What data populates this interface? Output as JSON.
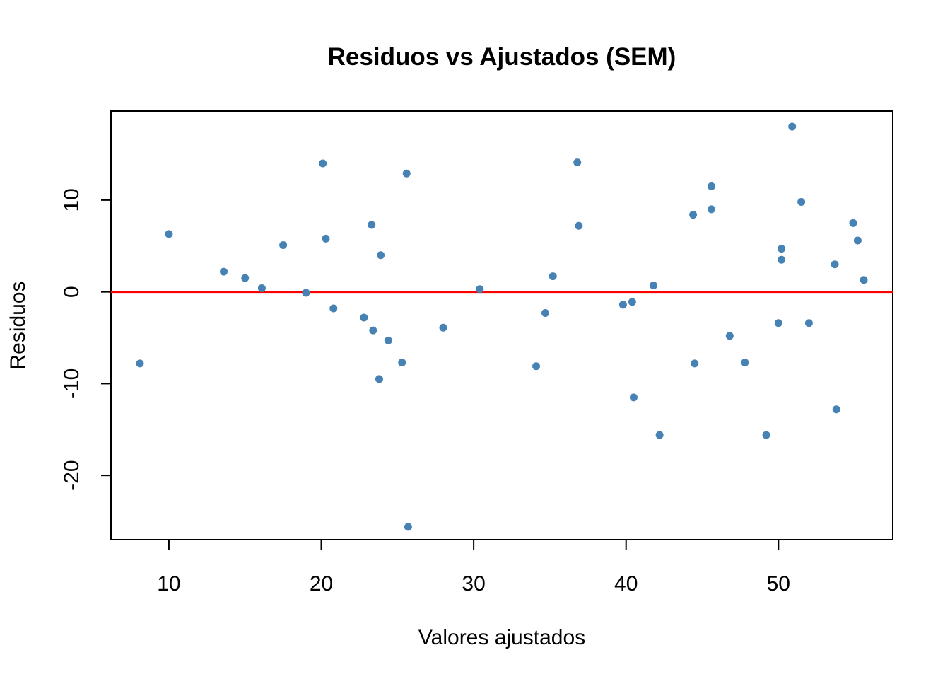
{
  "chart_data": {
    "type": "scatter",
    "title": "Residuos vs Ajustados (SEM)",
    "xlabel": "Valores ajustados",
    "ylabel": "Residuos",
    "xlim": [
      6.2,
      57.5
    ],
    "ylim": [
      -27,
      19.7
    ],
    "x_ticks": [
      10,
      20,
      30,
      40,
      50
    ],
    "y_ticks": [
      -20,
      -10,
      0,
      10
    ],
    "reference_line": {
      "y": 0,
      "color": "#ff0000"
    },
    "point_color": "#4682b4",
    "grid": false,
    "legend": "none",
    "points": [
      {
        "x": 8.1,
        "y": -7.8
      },
      {
        "x": 10.0,
        "y": 6.3
      },
      {
        "x": 13.6,
        "y": 2.2
      },
      {
        "x": 15.0,
        "y": 1.5
      },
      {
        "x": 16.1,
        "y": 0.4
      },
      {
        "x": 17.5,
        "y": 5.1
      },
      {
        "x": 19.0,
        "y": -0.1
      },
      {
        "x": 20.1,
        "y": 14.0
      },
      {
        "x": 20.3,
        "y": 5.8
      },
      {
        "x": 20.8,
        "y": -1.8
      },
      {
        "x": 22.8,
        "y": -2.8
      },
      {
        "x": 23.3,
        "y": 7.3
      },
      {
        "x": 23.4,
        "y": -4.2
      },
      {
        "x": 23.8,
        "y": -9.5
      },
      {
        "x": 23.9,
        "y": 4.0
      },
      {
        "x": 24.4,
        "y": -5.3
      },
      {
        "x": 25.3,
        "y": -7.7
      },
      {
        "x": 25.6,
        "y": 12.9
      },
      {
        "x": 25.7,
        "y": -25.6
      },
      {
        "x": 28.0,
        "y": -3.9
      },
      {
        "x": 30.4,
        "y": 0.3
      },
      {
        "x": 34.1,
        "y": -8.1
      },
      {
        "x": 34.7,
        "y": -2.3
      },
      {
        "x": 35.2,
        "y": 1.7
      },
      {
        "x": 36.8,
        "y": 14.1
      },
      {
        "x": 36.9,
        "y": 7.2
      },
      {
        "x": 39.8,
        "y": -1.4
      },
      {
        "x": 40.4,
        "y": -1.1
      },
      {
        "x": 40.5,
        "y": -11.5
      },
      {
        "x": 41.8,
        "y": 0.7
      },
      {
        "x": 42.2,
        "y": -15.6
      },
      {
        "x": 44.4,
        "y": 8.4
      },
      {
        "x": 44.5,
        "y": -7.8
      },
      {
        "x": 45.6,
        "y": 11.5
      },
      {
        "x": 45.6,
        "y": 9.0
      },
      {
        "x": 46.8,
        "y": -4.8
      },
      {
        "x": 47.8,
        "y": -7.7
      },
      {
        "x": 49.2,
        "y": -15.6
      },
      {
        "x": 50.0,
        "y": -3.4
      },
      {
        "x": 50.2,
        "y": 4.7
      },
      {
        "x": 50.2,
        "y": 3.5
      },
      {
        "x": 50.9,
        "y": 18.0
      },
      {
        "x": 51.5,
        "y": 9.8
      },
      {
        "x": 52.0,
        "y": -3.4
      },
      {
        "x": 53.7,
        "y": 3.0
      },
      {
        "x": 53.8,
        "y": -12.8
      },
      {
        "x": 54.9,
        "y": 7.5
      },
      {
        "x": 55.2,
        "y": 5.6
      },
      {
        "x": 55.6,
        "y": 1.3
      }
    ]
  }
}
